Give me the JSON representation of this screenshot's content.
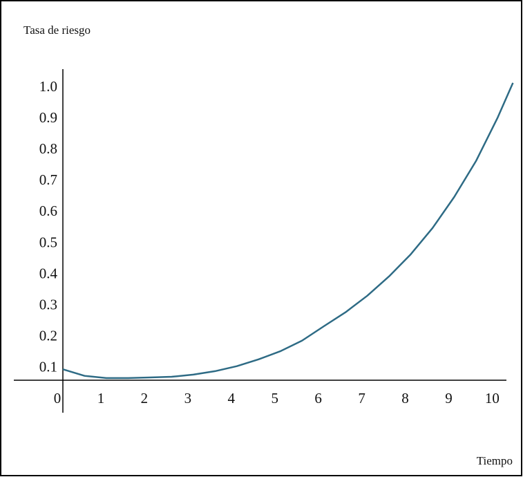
{
  "chart_data": {
    "type": "line",
    "title": "Tasa de riesgo",
    "x_label": "Tiempo",
    "x": [
      0,
      0.5,
      1,
      1.5,
      2,
      2.5,
      3,
      3.5,
      4,
      4.5,
      5,
      5.5,
      6,
      6.5,
      7,
      7.5,
      8,
      8.5,
      9,
      9.5,
      10,
      10.35
    ],
    "series": [
      {
        "color": "#2e6b85",
        "values": [
          0.097,
          0.076,
          0.069,
          0.069,
          0.071,
          0.073,
          0.08,
          0.091,
          0.107,
          0.129,
          0.155,
          0.189,
          0.235,
          0.28,
          0.333,
          0.395,
          0.466,
          0.55,
          0.65,
          0.765,
          0.905,
          1.016
        ]
      }
    ],
    "xlim": [
      0,
      10.2
    ],
    "ylim": [
      0.062,
      1.06
    ],
    "xticks": [
      0,
      1,
      2,
      3,
      4,
      5,
      6,
      7,
      8,
      9,
      10
    ],
    "yticks": [
      0.1,
      0.2,
      0.3,
      0.4,
      0.5,
      0.6,
      0.7,
      0.8,
      0.9,
      {
        "value": 1.0,
        "label": "1.0"
      }
    ],
    "grid": false
  }
}
